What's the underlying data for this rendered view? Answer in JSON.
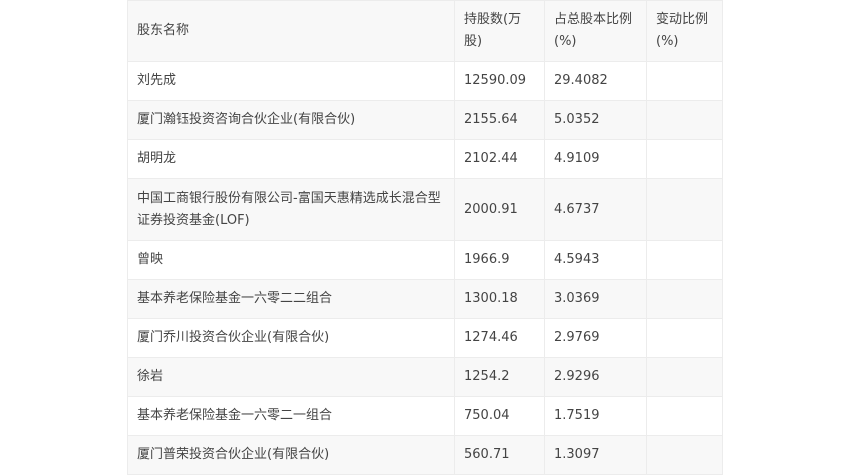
{
  "table": {
    "headers": [
      "股东名称",
      "持股数(万股)",
      "占总股本比例(%)",
      "变动比例(%)"
    ],
    "rows": [
      {
        "name": "刘先成",
        "shares": "12590.09",
        "pct": "29.4082",
        "change": ""
      },
      {
        "name": "厦门瀚钰投资咨询合伙企业(有限合伙)",
        "shares": "2155.64",
        "pct": "5.0352",
        "change": ""
      },
      {
        "name": "胡明龙",
        "shares": "2102.44",
        "pct": "4.9109",
        "change": ""
      },
      {
        "name": "中国工商银行股份有限公司-富国天惠精选成长混合型证券投资基金(LOF)",
        "shares": "2000.91",
        "pct": "4.6737",
        "change": ""
      },
      {
        "name": "曾映",
        "shares": "1966.9",
        "pct": "4.5943",
        "change": ""
      },
      {
        "name": "基本养老保险基金一六零二二组合",
        "shares": "1300.18",
        "pct": "3.0369",
        "change": ""
      },
      {
        "name": "厦门乔川投资合伙企业(有限合伙)",
        "shares": "1274.46",
        "pct": "2.9769",
        "change": ""
      },
      {
        "name": "徐岩",
        "shares": "1254.2",
        "pct": "2.9296",
        "change": ""
      },
      {
        "name": "基本养老保险基金一六零二一组合",
        "shares": "750.04",
        "pct": "1.7519",
        "change": ""
      },
      {
        "name": "厦门普荣投资合伙企业(有限合伙)",
        "shares": "560.71",
        "pct": "1.3097",
        "change": ""
      }
    ]
  }
}
